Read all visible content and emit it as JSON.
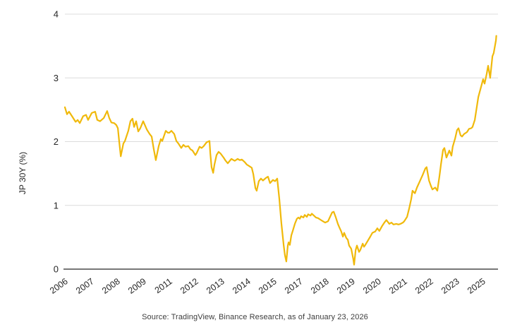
{
  "figure": {
    "source_caption": "Source: TradingView, Binance Research, as of January 23, 2026"
  },
  "chart_data": {
    "type": "line",
    "title": "",
    "xlabel": "",
    "ylabel": "JP 30Y (%)",
    "ylim": [
      0,
      4
    ],
    "yticks": [
      0,
      1,
      2,
      3,
      4
    ],
    "grid": "horizontal-light-gray, dark baseline at 0",
    "legend": "none",
    "line_color": "#F0B90B",
    "grid_color": "#DCDCDC",
    "axis_color": "#4A4A4A",
    "tick_text_color": "#262626",
    "xtick_labels": [
      "2006",
      "2007",
      "2008",
      "2009",
      "2011",
      "2012",
      "2013",
      "2014",
      "2015",
      "2017",
      "2018",
      "2019",
      "2020",
      "2021",
      "2022",
      "2023",
      "2025"
    ],
    "axis_anchor_years": [
      2006,
      2007,
      2008,
      2009,
      2011,
      2012,
      2013,
      2014,
      2015,
      2017,
      2018,
      2019,
      2020,
      2021,
      2022,
      2023,
      2025,
      2027
    ],
    "series": [
      {
        "name": "JP 30Y (%)",
        "points": [
          [
            2006.0,
            2.54
          ],
          [
            2006.08,
            2.43
          ],
          [
            2006.16,
            2.47
          ],
          [
            2006.27,
            2.4
          ],
          [
            2006.41,
            2.31
          ],
          [
            2006.49,
            2.34
          ],
          [
            2006.57,
            2.29
          ],
          [
            2006.7,
            2.4
          ],
          [
            2006.81,
            2.42
          ],
          [
            2006.89,
            2.34
          ],
          [
            2007.03,
            2.45
          ],
          [
            2007.16,
            2.47
          ],
          [
            2007.24,
            2.34
          ],
          [
            2007.35,
            2.32
          ],
          [
            2007.49,
            2.37
          ],
          [
            2007.62,
            2.48
          ],
          [
            2007.7,
            2.37
          ],
          [
            2007.78,
            2.3
          ],
          [
            2007.89,
            2.29
          ],
          [
            2007.97,
            2.26
          ],
          [
            2008.03,
            2.21
          ],
          [
            2008.08,
            2.0
          ],
          [
            2008.14,
            1.77
          ],
          [
            2008.24,
            1.97
          ],
          [
            2008.3,
            2.01
          ],
          [
            2008.43,
            2.17
          ],
          [
            2008.51,
            2.32
          ],
          [
            2008.59,
            2.36
          ],
          [
            2008.65,
            2.23
          ],
          [
            2008.73,
            2.32
          ],
          [
            2008.81,
            2.16
          ],
          [
            2008.89,
            2.21
          ],
          [
            2009.0,
            2.32
          ],
          [
            2009.28,
            2.19
          ],
          [
            2009.49,
            2.12
          ],
          [
            2009.65,
            2.08
          ],
          [
            2009.81,
            1.88
          ],
          [
            2009.97,
            1.71
          ],
          [
            2010.19,
            1.93
          ],
          [
            2010.35,
            2.04
          ],
          [
            2010.46,
            2.01
          ],
          [
            2010.73,
            2.17
          ],
          [
            2010.89,
            2.14
          ],
          [
            2011.0,
            2.14
          ],
          [
            2011.08,
            2.17
          ],
          [
            2011.19,
            2.12
          ],
          [
            2011.27,
            2.01
          ],
          [
            2011.35,
            1.97
          ],
          [
            2011.46,
            1.9
          ],
          [
            2011.54,
            1.95
          ],
          [
            2011.62,
            1.92
          ],
          [
            2011.73,
            1.93
          ],
          [
            2011.81,
            1.88
          ],
          [
            2011.89,
            1.86
          ],
          [
            2012.0,
            1.79
          ],
          [
            2012.05,
            1.82
          ],
          [
            2012.16,
            1.92
          ],
          [
            2012.24,
            1.9
          ],
          [
            2012.32,
            1.93
          ],
          [
            2012.43,
            1.99
          ],
          [
            2012.54,
            2.01
          ],
          [
            2012.57,
            1.82
          ],
          [
            2012.62,
            1.6
          ],
          [
            2012.68,
            1.51
          ],
          [
            2012.73,
            1.64
          ],
          [
            2012.81,
            1.79
          ],
          [
            2012.89,
            1.84
          ],
          [
            2012.97,
            1.81
          ],
          [
            2013.08,
            1.75
          ],
          [
            2013.16,
            1.7
          ],
          [
            2013.24,
            1.66
          ],
          [
            2013.32,
            1.7
          ],
          [
            2013.38,
            1.73
          ],
          [
            2013.46,
            1.71
          ],
          [
            2013.51,
            1.7
          ],
          [
            2013.62,
            1.73
          ],
          [
            2013.7,
            1.71
          ],
          [
            2013.78,
            1.72
          ],
          [
            2013.89,
            1.68
          ],
          [
            2013.97,
            1.64
          ],
          [
            2014.05,
            1.62
          ],
          [
            2014.16,
            1.59
          ],
          [
            2014.22,
            1.49
          ],
          [
            2014.3,
            1.27
          ],
          [
            2014.35,
            1.23
          ],
          [
            2014.43,
            1.38
          ],
          [
            2014.51,
            1.42
          ],
          [
            2014.59,
            1.39
          ],
          [
            2014.7,
            1.43
          ],
          [
            2014.78,
            1.45
          ],
          [
            2014.86,
            1.35
          ],
          [
            2014.97,
            1.4
          ],
          [
            2015.11,
            1.38
          ],
          [
            2015.27,
            1.42
          ],
          [
            2015.43,
            1.1
          ],
          [
            2015.59,
            0.72
          ],
          [
            2015.76,
            0.38
          ],
          [
            2015.86,
            0.22
          ],
          [
            2015.97,
            0.12
          ],
          [
            2016.08,
            0.37
          ],
          [
            2016.14,
            0.42
          ],
          [
            2016.24,
            0.38
          ],
          [
            2016.35,
            0.53
          ],
          [
            2016.46,
            0.6
          ],
          [
            2016.62,
            0.71
          ],
          [
            2016.78,
            0.79
          ],
          [
            2016.89,
            0.81
          ],
          [
            2017.0,
            0.79
          ],
          [
            2017.05,
            0.83
          ],
          [
            2017.14,
            0.81
          ],
          [
            2017.19,
            0.85
          ],
          [
            2017.27,
            0.82
          ],
          [
            2017.32,
            0.86
          ],
          [
            2017.41,
            0.84
          ],
          [
            2017.46,
            0.87
          ],
          [
            2017.54,
            0.84
          ],
          [
            2017.62,
            0.81
          ],
          [
            2017.7,
            0.8
          ],
          [
            2017.81,
            0.77
          ],
          [
            2017.89,
            0.75
          ],
          [
            2017.97,
            0.73
          ],
          [
            2018.08,
            0.75
          ],
          [
            2018.16,
            0.82
          ],
          [
            2018.24,
            0.89
          ],
          [
            2018.3,
            0.9
          ],
          [
            2018.38,
            0.81
          ],
          [
            2018.46,
            0.71
          ],
          [
            2018.51,
            0.66
          ],
          [
            2018.59,
            0.59
          ],
          [
            2018.65,
            0.51
          ],
          [
            2018.7,
            0.57
          ],
          [
            2018.78,
            0.49
          ],
          [
            2018.84,
            0.46
          ],
          [
            2018.89,
            0.37
          ],
          [
            2018.97,
            0.32
          ],
          [
            2019.05,
            0.16
          ],
          [
            2019.08,
            0.07
          ],
          [
            2019.14,
            0.3
          ],
          [
            2019.19,
            0.37
          ],
          [
            2019.27,
            0.27
          ],
          [
            2019.32,
            0.3
          ],
          [
            2019.41,
            0.4
          ],
          [
            2019.46,
            0.35
          ],
          [
            2019.51,
            0.38
          ],
          [
            2019.7,
            0.51
          ],
          [
            2019.78,
            0.57
          ],
          [
            2019.89,
            0.59
          ],
          [
            2019.97,
            0.64
          ],
          [
            2020.05,
            0.6
          ],
          [
            2020.16,
            0.68
          ],
          [
            2020.24,
            0.73
          ],
          [
            2020.32,
            0.77
          ],
          [
            2020.43,
            0.71
          ],
          [
            2020.51,
            0.73
          ],
          [
            2020.59,
            0.7
          ],
          [
            2020.7,
            0.71
          ],
          [
            2020.78,
            0.7
          ],
          [
            2020.86,
            0.71
          ],
          [
            2020.95,
            0.73
          ],
          [
            2021.0,
            0.75
          ],
          [
            2021.11,
            0.82
          ],
          [
            2021.19,
            0.95
          ],
          [
            2021.27,
            1.1
          ],
          [
            2021.32,
            1.23
          ],
          [
            2021.41,
            1.19
          ],
          [
            2021.49,
            1.28
          ],
          [
            2021.59,
            1.37
          ],
          [
            2021.7,
            1.47
          ],
          [
            2021.81,
            1.58
          ],
          [
            2021.86,
            1.6
          ],
          [
            2021.95,
            1.39
          ],
          [
            2022.03,
            1.3
          ],
          [
            2022.08,
            1.25
          ],
          [
            2022.19,
            1.28
          ],
          [
            2022.27,
            1.23
          ],
          [
            2022.35,
            1.45
          ],
          [
            2022.41,
            1.65
          ],
          [
            2022.49,
            1.87
          ],
          [
            2022.54,
            1.9
          ],
          [
            2022.62,
            1.75
          ],
          [
            2022.73,
            1.86
          ],
          [
            2022.81,
            1.78
          ],
          [
            2022.86,
            1.92
          ],
          [
            2022.95,
            2.05
          ],
          [
            2023.05,
            2.18
          ],
          [
            2023.16,
            2.21
          ],
          [
            2023.32,
            2.1
          ],
          [
            2023.43,
            2.08
          ],
          [
            2023.59,
            2.12
          ],
          [
            2023.81,
            2.15
          ],
          [
            2023.97,
            2.2
          ],
          [
            2024.14,
            2.21
          ],
          [
            2024.24,
            2.23
          ],
          [
            2024.41,
            2.34
          ],
          [
            2024.57,
            2.55
          ],
          [
            2024.68,
            2.7
          ],
          [
            2024.89,
            2.86
          ],
          [
            2025.05,
            2.98
          ],
          [
            2025.16,
            2.91
          ],
          [
            2025.32,
            3.06
          ],
          [
            2025.43,
            3.19
          ],
          [
            2025.59,
            3.0
          ],
          [
            2025.76,
            3.34
          ],
          [
            2025.86,
            3.39
          ],
          [
            2026.03,
            3.59
          ],
          [
            2026.06,
            3.66
          ]
        ]
      }
    ]
  }
}
